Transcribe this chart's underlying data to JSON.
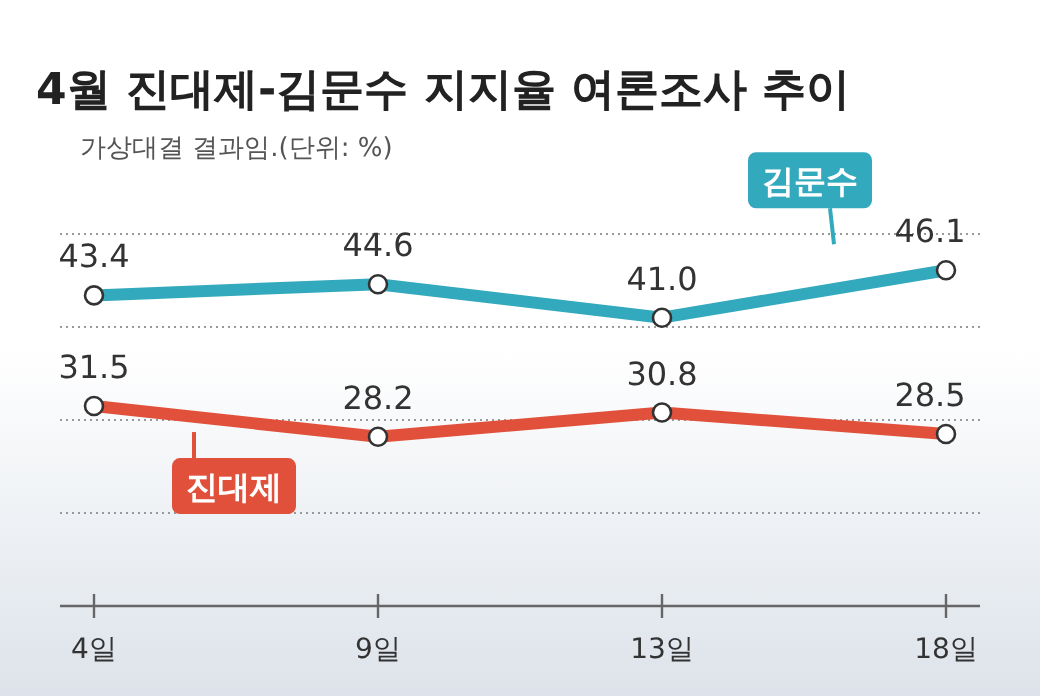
{
  "chart_data": {
    "type": "line",
    "title": "4월 진대제-김문수 지지율 여론조사 추이",
    "subtitle": "가상대결 결과임.(단위: %)",
    "categories": [
      "4일",
      "9일",
      "13일",
      "18일"
    ],
    "series": [
      {
        "name": "김문수",
        "color": "#33a9bd",
        "values": [
          43.4,
          44.6,
          41.0,
          46.1
        ],
        "value_labels": [
          "43.4",
          "44.6",
          "41.0",
          "46.1"
        ]
      },
      {
        "name": "진대제",
        "color": "#e0503a",
        "values": [
          31.5,
          28.2,
          30.8,
          28.5
        ],
        "value_labels": [
          "31.5",
          "28.2",
          "30.8",
          "28.5"
        ]
      }
    ],
    "ylim": [
      10,
      50
    ],
    "yticks": [
      {
        "value": 20,
        "label": null
      },
      {
        "value": 30,
        "label": null
      },
      {
        "value": 40,
        "label": null
      },
      {
        "value": 50,
        "label": null
      }
    ],
    "grid": "y",
    "marker": "circle",
    "line_style": "solid"
  }
}
